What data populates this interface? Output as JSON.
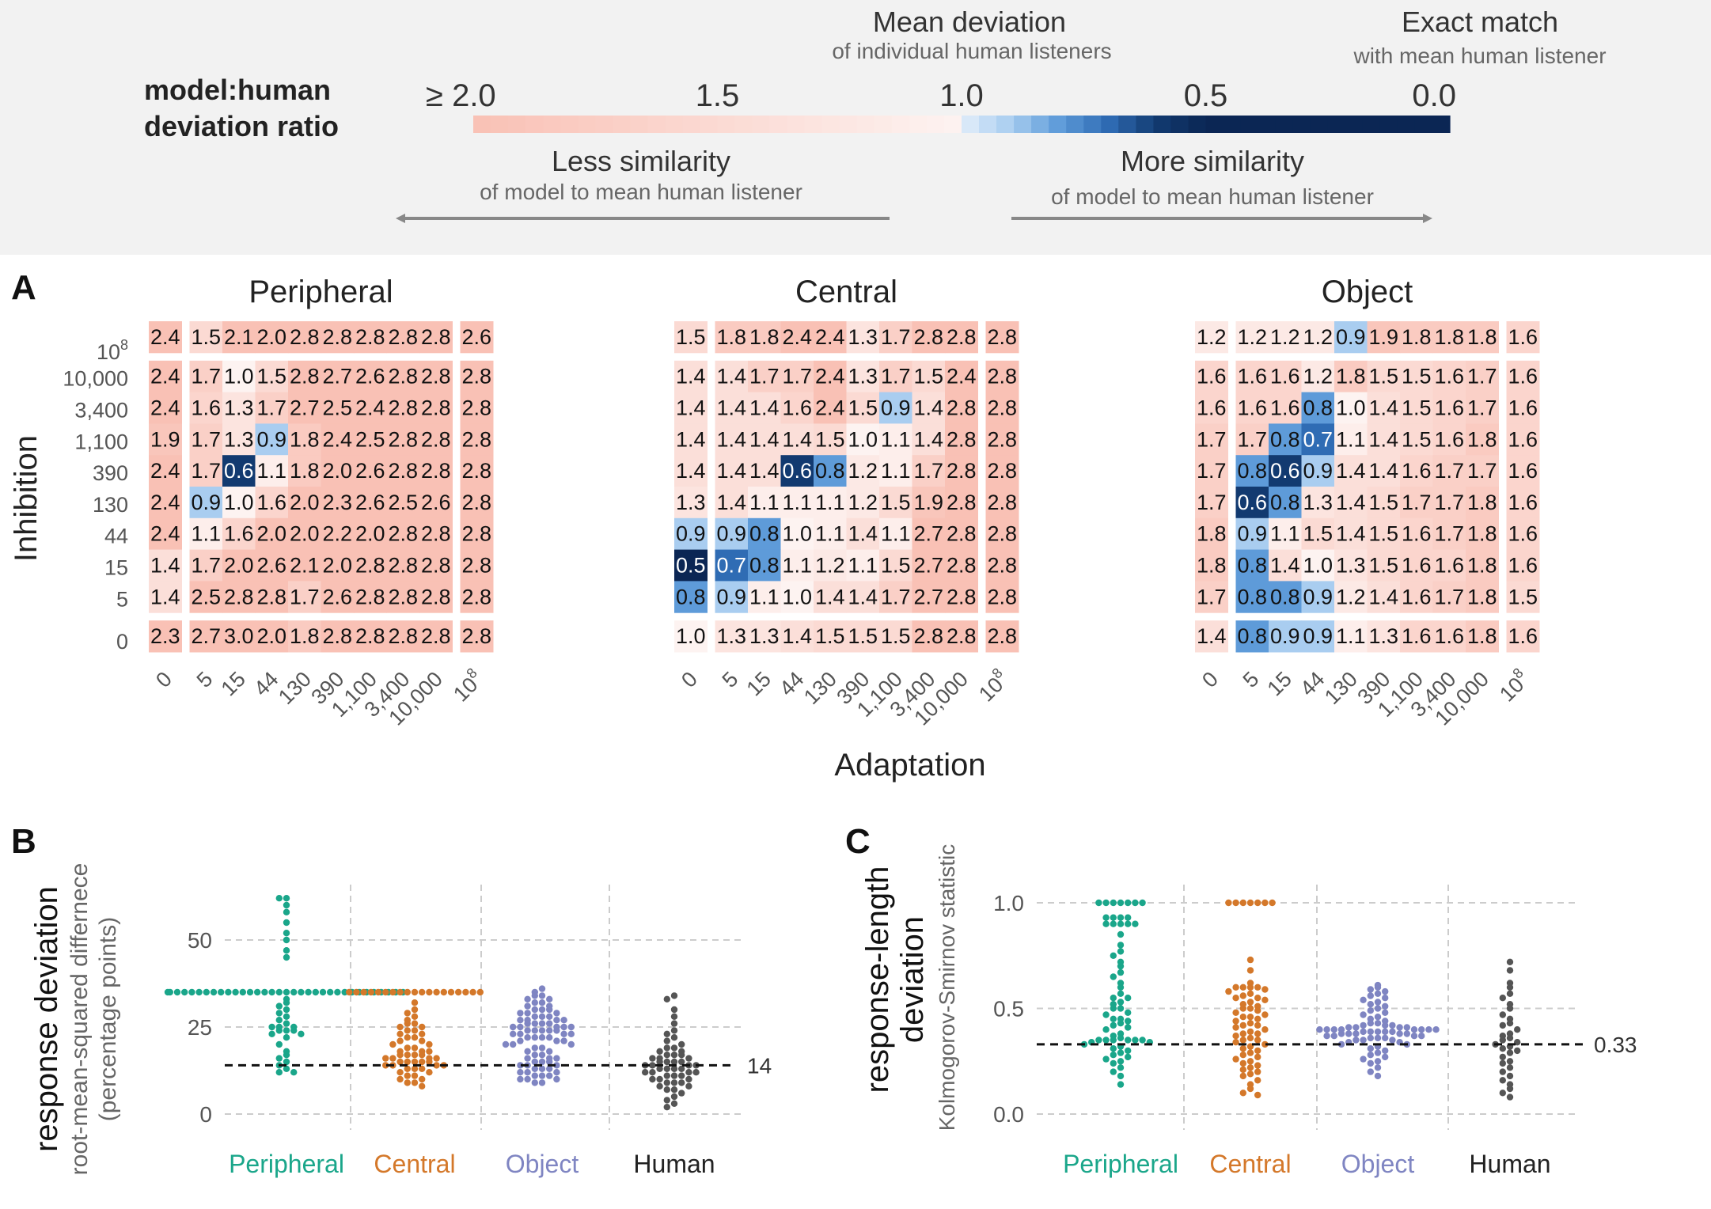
{
  "legend": {
    "title_line1": "model:human",
    "title_line2": "deviation ratio",
    "ticks": [
      {
        "label": "≥ 2.0",
        "value": 2.0
      },
      {
        "label": "1.5",
        "value": 1.5
      },
      {
        "label": "1.0",
        "value": 1.0
      },
      {
        "label": "0.5",
        "value": 0.5
      },
      {
        "label": "0.0",
        "value": 0.0
      }
    ],
    "mean_deviation": "Mean deviation",
    "mean_deviation_sub": "of individual human listeners",
    "exact_match": "Exact match",
    "exact_match_sub": "with mean human listener",
    "less_similarity": "Less similarity",
    "less_similarity_sub": "of model to mean human listener",
    "more_similarity": "More similarity",
    "more_similarity_sub": "of model to mean human listener"
  },
  "panel_a": {
    "letter": "A",
    "ylabel": "Inhibition",
    "xlabel": "Adaptation",
    "row_labels": [
      "10^8",
      "10,000",
      "3,400",
      "1,100",
      "390",
      "130",
      "44",
      "15",
      "5",
      "0"
    ],
    "col_labels": [
      "0",
      "5",
      "15",
      "44",
      "130",
      "390",
      "1,100",
      "3,400",
      "10,000",
      "10^8"
    ]
  },
  "panel_b": {
    "letter": "B",
    "ylabel": "response deviation",
    "ysub1": "root-mean-squared differnece",
    "ysub2": "(percentage points)",
    "ticks": [
      "0",
      "25",
      "50"
    ],
    "ref_label": "14"
  },
  "panel_c": {
    "letter": "C",
    "ylabel1": "response-length",
    "ylabel2": "deviation",
    "ysub": "Kolmogorov-Smirnov statistic",
    "ticks": [
      "0.0",
      "0.5",
      "1.0"
    ],
    "ref_label": "0.33"
  },
  "groups": [
    "Peripheral",
    "Central",
    "Object",
    "Human"
  ],
  "colors": {
    "peripheral": "#1aa68a",
    "central": "#d4782a",
    "object": "#7f85c2",
    "human": "#555555",
    "header_bg": "#f2f2f2"
  },
  "chart_data": [
    {
      "type": "heatmap",
      "title": "Peripheral",
      "x_categories": [
        "0",
        "5",
        "15",
        "44",
        "130",
        "390",
        "1,100",
        "3,400",
        "10,000",
        "10^8"
      ],
      "y_categories": [
        "10^8",
        "10,000",
        "3,400",
        "1,100",
        "390",
        "130",
        "44",
        "15",
        "5",
        "0"
      ],
      "xlabel": "Adaptation",
      "ylabel": "Inhibition",
      "values": [
        [
          2.4,
          1.5,
          2.1,
          2.0,
          2.8,
          2.8,
          2.8,
          2.8,
          2.8,
          2.6
        ],
        [
          2.4,
          1.7,
          1.0,
          1.5,
          2.8,
          2.7,
          2.6,
          2.8,
          2.8,
          2.8
        ],
        [
          2.4,
          1.6,
          1.3,
          1.7,
          2.7,
          2.5,
          2.4,
          2.8,
          2.8,
          2.8
        ],
        [
          1.9,
          1.7,
          1.3,
          0.9,
          1.8,
          2.4,
          2.5,
          2.8,
          2.8,
          2.8
        ],
        [
          2.4,
          1.7,
          0.6,
          1.1,
          1.8,
          2.0,
          2.6,
          2.8,
          2.8,
          2.8
        ],
        [
          2.4,
          0.9,
          1.0,
          1.6,
          2.0,
          2.3,
          2.6,
          2.5,
          2.6,
          2.8
        ],
        [
          2.4,
          1.1,
          1.6,
          2.0,
          2.0,
          2.2,
          2.0,
          2.8,
          2.8,
          2.8
        ],
        [
          1.4,
          1.7,
          2.0,
          2.6,
          2.1,
          2.0,
          2.8,
          2.8,
          2.8,
          2.8
        ],
        [
          1.4,
          2.5,
          2.8,
          2.8,
          1.7,
          2.6,
          2.8,
          2.8,
          2.8,
          2.8
        ],
        [
          2.3,
          2.7,
          3.0,
          2.0,
          1.8,
          2.8,
          2.8,
          2.8,
          2.8,
          2.8
        ]
      ]
    },
    {
      "type": "heatmap",
      "title": "Central",
      "x_categories": [
        "0",
        "5",
        "15",
        "44",
        "130",
        "390",
        "1,100",
        "3,400",
        "10,000",
        "10^8"
      ],
      "y_categories": [
        "10^8",
        "10,000",
        "3,400",
        "1,100",
        "390",
        "130",
        "44",
        "15",
        "5",
        "0"
      ],
      "xlabel": "Adaptation",
      "ylabel": "Inhibition",
      "values": [
        [
          1.5,
          1.8,
          1.8,
          2.4,
          2.4,
          1.3,
          1.7,
          2.8,
          2.8,
          2.8
        ],
        [
          1.4,
          1.4,
          1.7,
          1.7,
          2.4,
          1.3,
          1.7,
          1.5,
          2.4,
          2.8
        ],
        [
          1.4,
          1.4,
          1.4,
          1.6,
          2.4,
          1.5,
          0.9,
          1.4,
          2.8,
          2.8
        ],
        [
          1.4,
          1.4,
          1.4,
          1.4,
          1.5,
          1.0,
          1.1,
          1.4,
          2.8,
          2.8
        ],
        [
          1.4,
          1.4,
          1.4,
          0.6,
          0.8,
          1.2,
          1.1,
          1.7,
          2.8,
          2.8
        ],
        [
          1.3,
          1.4,
          1.1,
          1.1,
          1.1,
          1.2,
          1.5,
          1.9,
          2.8,
          2.8
        ],
        [
          0.9,
          0.9,
          0.8,
          1.0,
          1.1,
          1.4,
          1.1,
          2.7,
          2.8,
          2.8
        ],
        [
          0.5,
          0.7,
          0.8,
          1.1,
          1.2,
          1.1,
          1.5,
          2.7,
          2.8,
          2.8
        ],
        [
          0.8,
          0.9,
          1.1,
          1.0,
          1.4,
          1.4,
          1.7,
          2.7,
          2.8,
          2.8
        ],
        [
          1.0,
          1.3,
          1.3,
          1.4,
          1.5,
          1.5,
          1.5,
          2.8,
          2.8,
          2.8
        ]
      ]
    },
    {
      "type": "heatmap",
      "title": "Object",
      "x_categories": [
        "0",
        "5",
        "15",
        "44",
        "130",
        "390",
        "1,100",
        "3,400",
        "10,000",
        "10^8"
      ],
      "y_categories": [
        "10^8",
        "10,000",
        "3,400",
        "1,100",
        "390",
        "130",
        "44",
        "15",
        "5",
        "0"
      ],
      "xlabel": "Adaptation",
      "ylabel": "Inhibition",
      "values": [
        [
          1.2,
          1.2,
          1.2,
          1.2,
          0.9,
          1.9,
          1.8,
          1.8,
          1.8,
          1.6
        ],
        [
          1.6,
          1.6,
          1.6,
          1.2,
          1.8,
          1.5,
          1.5,
          1.6,
          1.7,
          1.6
        ],
        [
          1.6,
          1.6,
          1.6,
          0.8,
          1.0,
          1.4,
          1.5,
          1.6,
          1.7,
          1.6
        ],
        [
          1.7,
          1.7,
          0.8,
          0.7,
          1.1,
          1.4,
          1.5,
          1.6,
          1.8,
          1.6
        ],
        [
          1.7,
          0.8,
          0.6,
          0.9,
          1.4,
          1.4,
          1.6,
          1.7,
          1.7,
          1.6
        ],
        [
          1.7,
          0.6,
          0.8,
          1.3,
          1.4,
          1.5,
          1.7,
          1.7,
          1.8,
          1.6
        ],
        [
          1.8,
          0.9,
          1.1,
          1.5,
          1.4,
          1.5,
          1.6,
          1.7,
          1.8,
          1.6
        ],
        [
          1.8,
          0.8,
          1.4,
          1.0,
          1.3,
          1.5,
          1.6,
          1.6,
          1.8,
          1.6
        ],
        [
          1.7,
          0.8,
          0.8,
          0.9,
          1.2,
          1.4,
          1.6,
          1.7,
          1.8,
          1.5
        ],
        [
          1.4,
          0.8,
          0.9,
          0.9,
          1.1,
          1.3,
          1.6,
          1.6,
          1.8,
          1.6
        ]
      ]
    },
    {
      "type": "scatter",
      "title": "",
      "ylabel": "response deviation",
      "ylim": [
        0,
        63
      ],
      "reference_line": 14,
      "series": [
        {
          "name": "Peripheral",
          "values": [
            62,
            62,
            60,
            58,
            55,
            52,
            50,
            47,
            45,
            35,
            35,
            35,
            35,
            35,
            35,
            35,
            35,
            35,
            35,
            35,
            35,
            35,
            35,
            35,
            35,
            35,
            35,
            35,
            35,
            35,
            35,
            35,
            35,
            35,
            35,
            35,
            35,
            35,
            35,
            35,
            35,
            35,
            35,
            33,
            32,
            31,
            30,
            29,
            28,
            27,
            26,
            25,
            25,
            25,
            24,
            24,
            24,
            23,
            23,
            22,
            20,
            18,
            17,
            16,
            15,
            14,
            13,
            12,
            12
          ]
        },
        {
          "name": "Central",
          "values": [
            35,
            35,
            35,
            35,
            35,
            35,
            35,
            35,
            35,
            35,
            35,
            35,
            35,
            35,
            35,
            35,
            35,
            35,
            35,
            32,
            30,
            29,
            28,
            27,
            26,
            26,
            25,
            25,
            24,
            24,
            23,
            23,
            22,
            22,
            21,
            21,
            20,
            20,
            19,
            19,
            18,
            18,
            18,
            17,
            17,
            17,
            17,
            16,
            16,
            16,
            16,
            15,
            15,
            15,
            15,
            15,
            14,
            14,
            14,
            14,
            13,
            13,
            13,
            12,
            12,
            11,
            11,
            10,
            10,
            9,
            9,
            8
          ]
        },
        {
          "name": "Object",
          "values": [
            36,
            35,
            34,
            34,
            33,
            33,
            32,
            32,
            31,
            31,
            30,
            30,
            30,
            29,
            29,
            29,
            28,
            28,
            28,
            27,
            27,
            27,
            27,
            26,
            26,
            26,
            26,
            25,
            25,
            25,
            25,
            25,
            24,
            24,
            24,
            24,
            24,
            23,
            23,
            23,
            23,
            22,
            22,
            22,
            22,
            21,
            21,
            21,
            20,
            20,
            20,
            19,
            19,
            18,
            18,
            17,
            17,
            16,
            16,
            16,
            15,
            15,
            15,
            14,
            14,
            14,
            13,
            13,
            13,
            12,
            12,
            12,
            11,
            11,
            11,
            10,
            10,
            10,
            9,
            9
          ]
        },
        {
          "name": "Human",
          "values": [
            34,
            33,
            30,
            28,
            26,
            24,
            23,
            22,
            21,
            20,
            19,
            19,
            18,
            18,
            17,
            17,
            17,
            16,
            16,
            16,
            15,
            15,
            15,
            15,
            14,
            14,
            14,
            14,
            13,
            13,
            13,
            13,
            12,
            12,
            12,
            12,
            11,
            11,
            11,
            10,
            10,
            10,
            9,
            9,
            9,
            8,
            8,
            7,
            7,
            6,
            5,
            4,
            3,
            2
          ]
        }
      ]
    },
    {
      "type": "scatter",
      "title": "",
      "ylabel": "response-length deviation",
      "ylim": [
        0,
        1.05
      ],
      "reference_line": 0.33,
      "series": [
        {
          "name": "Peripheral",
          "values": [
            1.0,
            1.0,
            1.0,
            1.0,
            1.0,
            1.0,
            1.0,
            0.93,
            0.93,
            0.93,
            0.93,
            0.9,
            0.9,
            0.9,
            0.9,
            0.9,
            0.85,
            0.8,
            0.77,
            0.75,
            0.72,
            0.7,
            0.67,
            0.65,
            0.62,
            0.6,
            0.57,
            0.55,
            0.55,
            0.53,
            0.52,
            0.5,
            0.5,
            0.48,
            0.47,
            0.45,
            0.45,
            0.44,
            0.43,
            0.42,
            0.41,
            0.4,
            0.38,
            0.37,
            0.36,
            0.35,
            0.35,
            0.35,
            0.35,
            0.35,
            0.35,
            0.34,
            0.34,
            0.33,
            0.32,
            0.31,
            0.3,
            0.29,
            0.28,
            0.27,
            0.26,
            0.25,
            0.24,
            0.22,
            0.2,
            0.18,
            0.14
          ]
        },
        {
          "name": "Central",
          "values": [
            1.0,
            1.0,
            1.0,
            1.0,
            1.0,
            1.0,
            1.0,
            0.73,
            0.68,
            0.62,
            0.6,
            0.6,
            0.6,
            0.6,
            0.59,
            0.58,
            0.57,
            0.56,
            0.55,
            0.55,
            0.54,
            0.53,
            0.52,
            0.51,
            0.5,
            0.5,
            0.49,
            0.48,
            0.47,
            0.46,
            0.46,
            0.45,
            0.44,
            0.43,
            0.42,
            0.42,
            0.41,
            0.4,
            0.39,
            0.38,
            0.38,
            0.37,
            0.36,
            0.35,
            0.35,
            0.34,
            0.33,
            0.32,
            0.31,
            0.3,
            0.29,
            0.28,
            0.27,
            0.26,
            0.25,
            0.24,
            0.23,
            0.22,
            0.21,
            0.2,
            0.19,
            0.18,
            0.16,
            0.14,
            0.12,
            0.1,
            0.09
          ]
        },
        {
          "name": "Object",
          "values": [
            0.61,
            0.6,
            0.59,
            0.58,
            0.57,
            0.56,
            0.55,
            0.54,
            0.53,
            0.52,
            0.51,
            0.5,
            0.49,
            0.48,
            0.47,
            0.46,
            0.45,
            0.44,
            0.43,
            0.43,
            0.42,
            0.42,
            0.42,
            0.41,
            0.41,
            0.41,
            0.41,
            0.4,
            0.4,
            0.4,
            0.4,
            0.4,
            0.4,
            0.4,
            0.4,
            0.39,
            0.39,
            0.39,
            0.39,
            0.39,
            0.38,
            0.38,
            0.38,
            0.38,
            0.38,
            0.37,
            0.37,
            0.37,
            0.37,
            0.36,
            0.36,
            0.36,
            0.35,
            0.35,
            0.35,
            0.34,
            0.34,
            0.33,
            0.33,
            0.32,
            0.31,
            0.3,
            0.29,
            0.28,
            0.27,
            0.26,
            0.25,
            0.24,
            0.22,
            0.2,
            0.18
          ]
        },
        {
          "name": "Human",
          "values": [
            0.72,
            0.68,
            0.62,
            0.6,
            0.57,
            0.55,
            0.52,
            0.5,
            0.47,
            0.45,
            0.43,
            0.42,
            0.4,
            0.38,
            0.37,
            0.36,
            0.35,
            0.34,
            0.33,
            0.32,
            0.31,
            0.3,
            0.29,
            0.27,
            0.25,
            0.24,
            0.22,
            0.2,
            0.18,
            0.16,
            0.14,
            0.12,
            0.1,
            0.08
          ]
        }
      ]
    }
  ]
}
